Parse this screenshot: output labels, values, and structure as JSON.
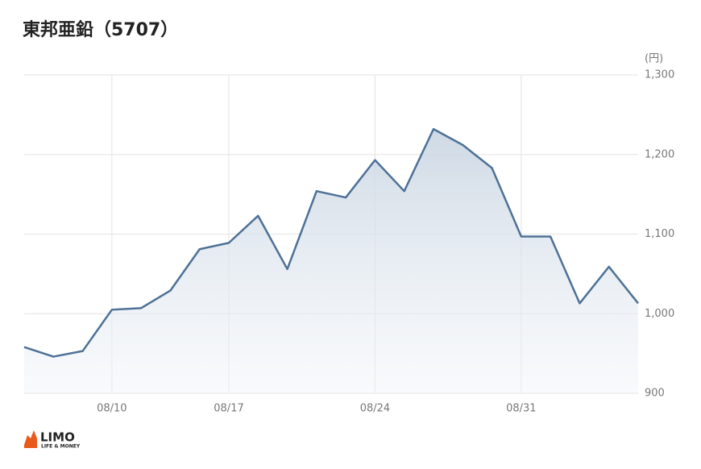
{
  "chart_data": {
    "type": "line",
    "title": "東邦亜鉛（5707）",
    "y_unit": "(円)",
    "categories": [
      null,
      null,
      null,
      "08/10",
      null,
      null,
      null,
      "08/17",
      null,
      null,
      null,
      null,
      "08/24",
      null,
      null,
      null,
      null,
      "08/31",
      null,
      null,
      null,
      null
    ],
    "values": [
      958,
      946,
      953,
      1005,
      1007,
      1029,
      1081,
      1089,
      1123,
      1056,
      1154,
      1146,
      1193,
      1154,
      1232,
      1212,
      1183,
      1097,
      1097,
      1013,
      1059,
      1013
    ],
    "color": "#4d7196",
    "ylim": [
      900,
      1300
    ],
    "yticks": [
      900,
      {
        "value": 1000,
        "label": "1,000"
      },
      {
        "value": 1100,
        "label": "1,100"
      },
      {
        "value": 1200,
        "label": "1,200"
      },
      {
        "value": 1300,
        "label": "1,300"
      }
    ],
    "grid": true,
    "logo": {
      "name": "LIMO",
      "tagline": "LIFE & MONEY"
    }
  }
}
